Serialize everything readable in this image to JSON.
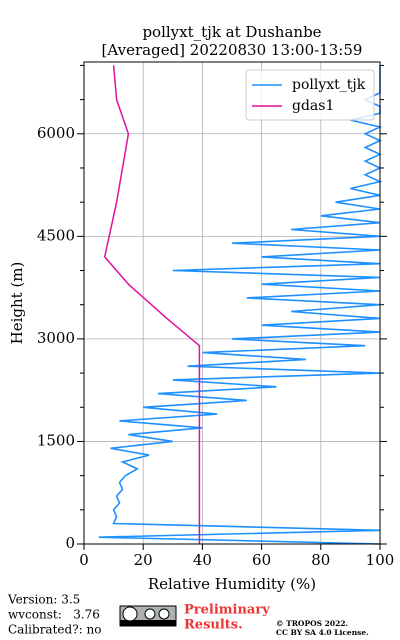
{
  "chart_data": {
    "type": "line",
    "title": [
      "pollyxt_tjk at Dushanbe",
      "[Averaged] 20220830 13:00-13:59"
    ],
    "xlabel": "Relative Humidity (%)",
    "ylabel": "Height (m)",
    "xlim": [
      0,
      100
    ],
    "xticks": [
      0,
      20,
      40,
      60,
      80,
      100
    ],
    "ylim": [
      0,
      7050
    ],
    "yticks": [
      0,
      1500,
      3000,
      4500,
      6000
    ],
    "y_minor_ticks": [
      500,
      1000,
      2000,
      2500,
      3500,
      4000,
      5000,
      5500,
      6500,
      7000
    ],
    "grid": true,
    "legend": "upper right",
    "series": [
      {
        "name": "pollyxt_tjk",
        "color": "#1e90ff",
        "heights": [
          0,
          100,
          200,
          300,
          400,
          500,
          600,
          700,
          800,
          900,
          1000,
          1100,
          1200,
          1300,
          1400,
          1500,
          1600,
          1700,
          1800,
          1900,
          2000,
          2100,
          2200,
          2300,
          2400,
          2500,
          2600,
          2700,
          2800,
          2900,
          3000,
          3100,
          3200,
          3300,
          3400,
          3500,
          3600,
          3700,
          3800,
          3900,
          4000,
          4100,
          4200,
          4300,
          4400,
          4500,
          4600,
          4700,
          4800,
          4900,
          5000,
          5100,
          5200,
          5300,
          5400,
          5500,
          5600,
          5700,
          5800,
          5900,
          6000,
          6100,
          6200,
          6300,
          6400,
          6500,
          6600,
          6700,
          6800,
          6900,
          7000
        ],
        "values": [
          100,
          5,
          100,
          10,
          11,
          10,
          12,
          11,
          13,
          12,
          14,
          18,
          13,
          22,
          9,
          30,
          15,
          40,
          12,
          45,
          20,
          55,
          25,
          65,
          30,
          100,
          35,
          75,
          40,
          95,
          50,
          100,
          60,
          100,
          70,
          100,
          55,
          100,
          60,
          100,
          30,
          100,
          60,
          100,
          50,
          100,
          70,
          100,
          80,
          100,
          85,
          100,
          90,
          100,
          95,
          100,
          95,
          100,
          95,
          100,
          95,
          100,
          90,
          100,
          100,
          95,
          100,
          100,
          100,
          100,
          100
        ]
      },
      {
        "name": "gdas1",
        "color": "#e0119d",
        "heights": [
          0,
          1500,
          2900,
          3300,
          3800,
          4200,
          5000,
          5500,
          6000,
          6500,
          7000
        ],
        "values": [
          39,
          39,
          39,
          28,
          15,
          7,
          11,
          13,
          15,
          11,
          10
        ]
      }
    ],
    "footer": {
      "version": "Version: 3.5",
      "wvconst": "wvconst:   3.76",
      "calibrated": "Calibrated?: no",
      "preliminary": "Preliminary",
      "results": "Results.",
      "copyright": "© TROPOS 2022.",
      "license": "CC BY SA 4.0 License."
    }
  }
}
